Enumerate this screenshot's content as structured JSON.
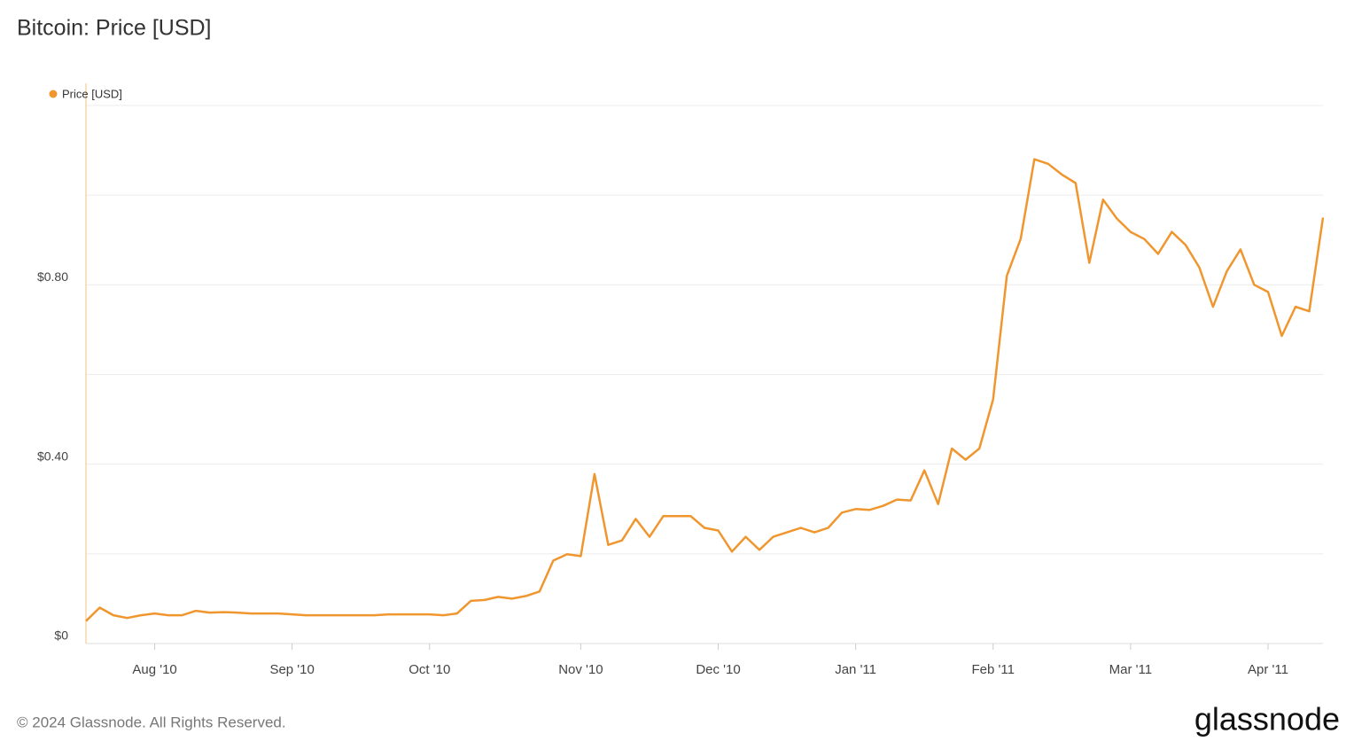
{
  "chart_data": {
    "type": "line",
    "title": "Bitcoin: Price [USD]",
    "categories": [
      null,
      null,
      null,
      null,
      null,
      "Aug '10",
      null,
      null,
      null,
      null,
      null,
      null,
      null,
      null,
      null,
      "Sep '10",
      null,
      null,
      null,
      null,
      null,
      null,
      null,
      null,
      null,
      "Oct '10",
      null,
      null,
      null,
      null,
      null,
      null,
      null,
      null,
      null,
      null,
      "Nov '10",
      null,
      null,
      null,
      null,
      null,
      null,
      null,
      null,
      null,
      "Dec '10",
      null,
      null,
      null,
      null,
      null,
      null,
      null,
      null,
      null,
      "Jan '11",
      null,
      null,
      null,
      null,
      null,
      null,
      null,
      null,
      null,
      "Feb '11",
      null,
      null,
      null,
      null,
      null,
      null,
      null,
      null,
      null,
      "Mar '11",
      null,
      null,
      null,
      null,
      null,
      null,
      null,
      null,
      null,
      "Apr '11",
      null,
      null,
      null,
      null
    ],
    "series": [
      {
        "name": "Price [USD]",
        "color": "#f0962f",
        "values": [
          0.05,
          0.08,
          0.063,
          0.057,
          0.063,
          0.067,
          0.063,
          0.063,
          0.073,
          0.069,
          0.07,
          0.069,
          0.067,
          0.067,
          0.067,
          0.065,
          0.063,
          0.063,
          0.063,
          0.063,
          0.063,
          0.063,
          0.065,
          0.065,
          0.065,
          0.065,
          0.063,
          0.067,
          0.095,
          0.097,
          0.104,
          0.1,
          0.106,
          0.116,
          0.185,
          0.199,
          0.195,
          0.378,
          0.22,
          0.23,
          0.278,
          0.238,
          0.284,
          0.284,
          0.284,
          0.258,
          0.252,
          0.205,
          0.238,
          0.209,
          0.238,
          0.248,
          0.258,
          0.248,
          0.258,
          0.292,
          0.3,
          0.298,
          0.307,
          0.321,
          0.319,
          0.386,
          0.311,
          0.435,
          0.41,
          0.435,
          0.544,
          0.82,
          0.902,
          1.08,
          1.07,
          1.046,
          1.027,
          0.849,
          0.99,
          0.948,
          0.918,
          0.902,
          0.869,
          0.918,
          0.889,
          0.839,
          0.751,
          0.83,
          0.879,
          0.8,
          0.784,
          0.686,
          0.751,
          0.741,
          0.95
        ]
      }
    ],
    "ylim": [
      0,
      1.2
    ],
    "yticks": [
      {
        "value": 0,
        "label": "$0"
      },
      {
        "value": 0.4,
        "label": "$0.40"
      },
      {
        "value": 0.8,
        "label": "$0.80"
      }
    ],
    "grid_values": [
      0.2,
      0.4,
      0.6,
      0.8,
      1.0,
      1.2
    ],
    "grid": true,
    "legend": "top-left",
    "footer": "© 2024 Glassnode. All Rights Reserved.",
    "brand": "glassnode"
  }
}
